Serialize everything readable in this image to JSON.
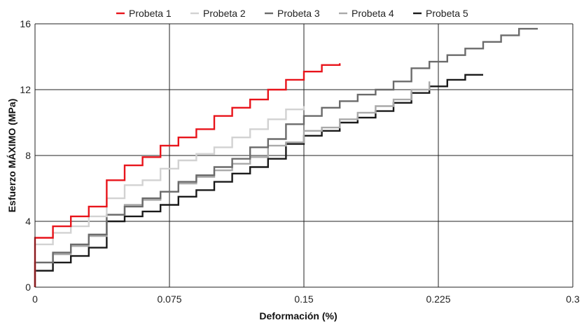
{
  "chart_data": {
    "type": "line",
    "xlabel": "Deformación (%)",
    "ylabel": "Esfuerzo MÁXIMO  (MPa)",
    "xlim": [
      0,
      0.3
    ],
    "ylim": [
      0,
      16
    ],
    "x_ticks": [
      "0",
      "0.075",
      "0.15",
      "0.225",
      "0.3"
    ],
    "y_ticks": [
      "0",
      "4",
      "8",
      "12",
      "16"
    ],
    "grid": true,
    "legend_position": "top",
    "step": "x-step",
    "series": [
      {
        "name": "Probeta 1",
        "color": "#e8141b",
        "x": [
          0,
          0.01,
          0.02,
          0.03,
          0.04,
          0.05,
          0.06,
          0.07,
          0.08,
          0.09,
          0.1,
          0.11,
          0.12,
          0.13,
          0.14,
          0.15,
          0.16,
          0.17
        ],
        "y": [
          3.0,
          3.7,
          4.3,
          4.9,
          6.5,
          7.4,
          7.9,
          8.6,
          9.1,
          9.6,
          10.4,
          10.9,
          11.4,
          12.0,
          12.6,
          13.1,
          13.5,
          13.6
        ]
      },
      {
        "name": "Probeta 2",
        "color": "#d2d2d2",
        "x": [
          0,
          0.01,
          0.02,
          0.03,
          0.04,
          0.05,
          0.06,
          0.07,
          0.08,
          0.09,
          0.1,
          0.11,
          0.12,
          0.13,
          0.14,
          0.15
        ],
        "y": [
          2.6,
          3.3,
          3.7,
          4.3,
          5.4,
          6.2,
          6.5,
          7.2,
          7.7,
          8.1,
          8.5,
          9.1,
          9.6,
          10.2,
          10.8,
          11.0
        ]
      },
      {
        "name": "Probeta 3",
        "color": "#6b6b6b",
        "x": [
          0,
          0.01,
          0.02,
          0.03,
          0.04,
          0.05,
          0.06,
          0.07,
          0.08,
          0.09,
          0.1,
          0.11,
          0.12,
          0.13,
          0.14,
          0.15,
          0.16,
          0.17,
          0.18,
          0.19,
          0.2,
          0.21,
          0.22,
          0.23,
          0.24,
          0.25,
          0.26,
          0.27,
          0.28
        ],
        "y": [
          1.5,
          2.1,
          2.6,
          3.2,
          4.4,
          4.9,
          5.4,
          5.8,
          6.4,
          6.8,
          7.3,
          7.8,
          8.5,
          9.0,
          9.9,
          10.4,
          10.9,
          11.3,
          11.7,
          12.0,
          12.5,
          13.3,
          13.7,
          14.1,
          14.5,
          14.9,
          15.3,
          15.7,
          15.75
        ]
      },
      {
        "name": "Probeta 4",
        "color": "#a9a9a9",
        "x": [
          0,
          0.01,
          0.02,
          0.03,
          0.04,
          0.05,
          0.06,
          0.07,
          0.08,
          0.09,
          0.1,
          0.11,
          0.12,
          0.13,
          0.14,
          0.15,
          0.16,
          0.17,
          0.18,
          0.19,
          0.2,
          0.21,
          0.22
        ],
        "y": [
          1.5,
          2.0,
          2.5,
          3.1,
          4.4,
          5.0,
          5.3,
          5.8,
          6.3,
          6.7,
          7.1,
          7.5,
          7.9,
          8.6,
          8.8,
          9.5,
          9.7,
          10.2,
          10.6,
          11.0,
          11.4,
          12.0,
          12.5
        ]
      },
      {
        "name": "Probeta 5",
        "color": "#1a1a1a",
        "x": [
          0,
          0.01,
          0.02,
          0.03,
          0.04,
          0.05,
          0.06,
          0.07,
          0.08,
          0.09,
          0.1,
          0.11,
          0.12,
          0.13,
          0.14,
          0.15,
          0.16,
          0.17,
          0.18,
          0.19,
          0.2,
          0.21,
          0.22,
          0.23,
          0.24,
          0.25
        ],
        "y": [
          1.0,
          1.5,
          1.9,
          2.4,
          4.0,
          4.3,
          4.6,
          5.0,
          5.5,
          5.9,
          6.4,
          6.9,
          7.3,
          7.8,
          8.7,
          9.2,
          9.5,
          10.0,
          10.3,
          10.7,
          11.2,
          11.8,
          12.2,
          12.6,
          12.9,
          12.9
        ]
      }
    ]
  }
}
